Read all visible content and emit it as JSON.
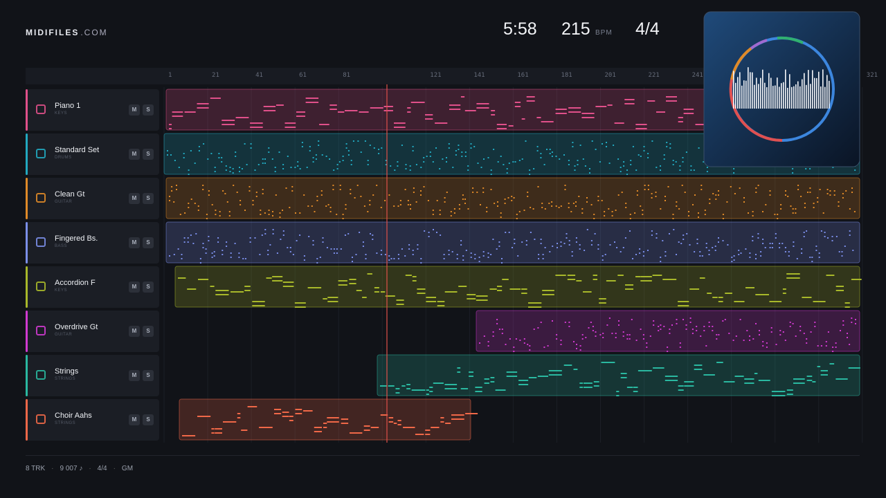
{
  "header": {
    "brand": "MIDIFILES",
    "brand_suffix": ".COM",
    "time": "5:58",
    "tempo": "215",
    "tempo_unit": "BPM",
    "meter": "4/4"
  },
  "ruler": [
    1,
    21,
    41,
    61,
    81,
    121,
    141,
    161,
    181,
    201,
    221,
    241,
    321
  ],
  "tracks": [
    {
      "name": "Piano 1",
      "category": "KEYS",
      "mute": "M",
      "solo": "S"
    },
    {
      "name": "Standard Set",
      "category": "DRUMS",
      "mute": "M",
      "solo": "S"
    },
    {
      "name": "Clean Gt",
      "category": "GUITAR",
      "mute": "M",
      "solo": "S"
    },
    {
      "name": "Fingered Bs.",
      "category": "BASS",
      "mute": "M",
      "solo": "S"
    },
    {
      "name": "Accordion F",
      "category": "KEYS",
      "mute": "M",
      "solo": "S"
    },
    {
      "name": "Overdrive Gt",
      "category": "GUITAR",
      "mute": "M",
      "solo": "S"
    },
    {
      "name": "Strings",
      "category": "STRINGS",
      "mute": "M",
      "solo": "S"
    },
    {
      "name": "Choir Aahs",
      "category": "STRINGS",
      "mute": "M",
      "solo": "S"
    }
  ],
  "footer": [
    "8 TRK",
    "9 007 ♪",
    "4/4",
    "GM"
  ]
}
